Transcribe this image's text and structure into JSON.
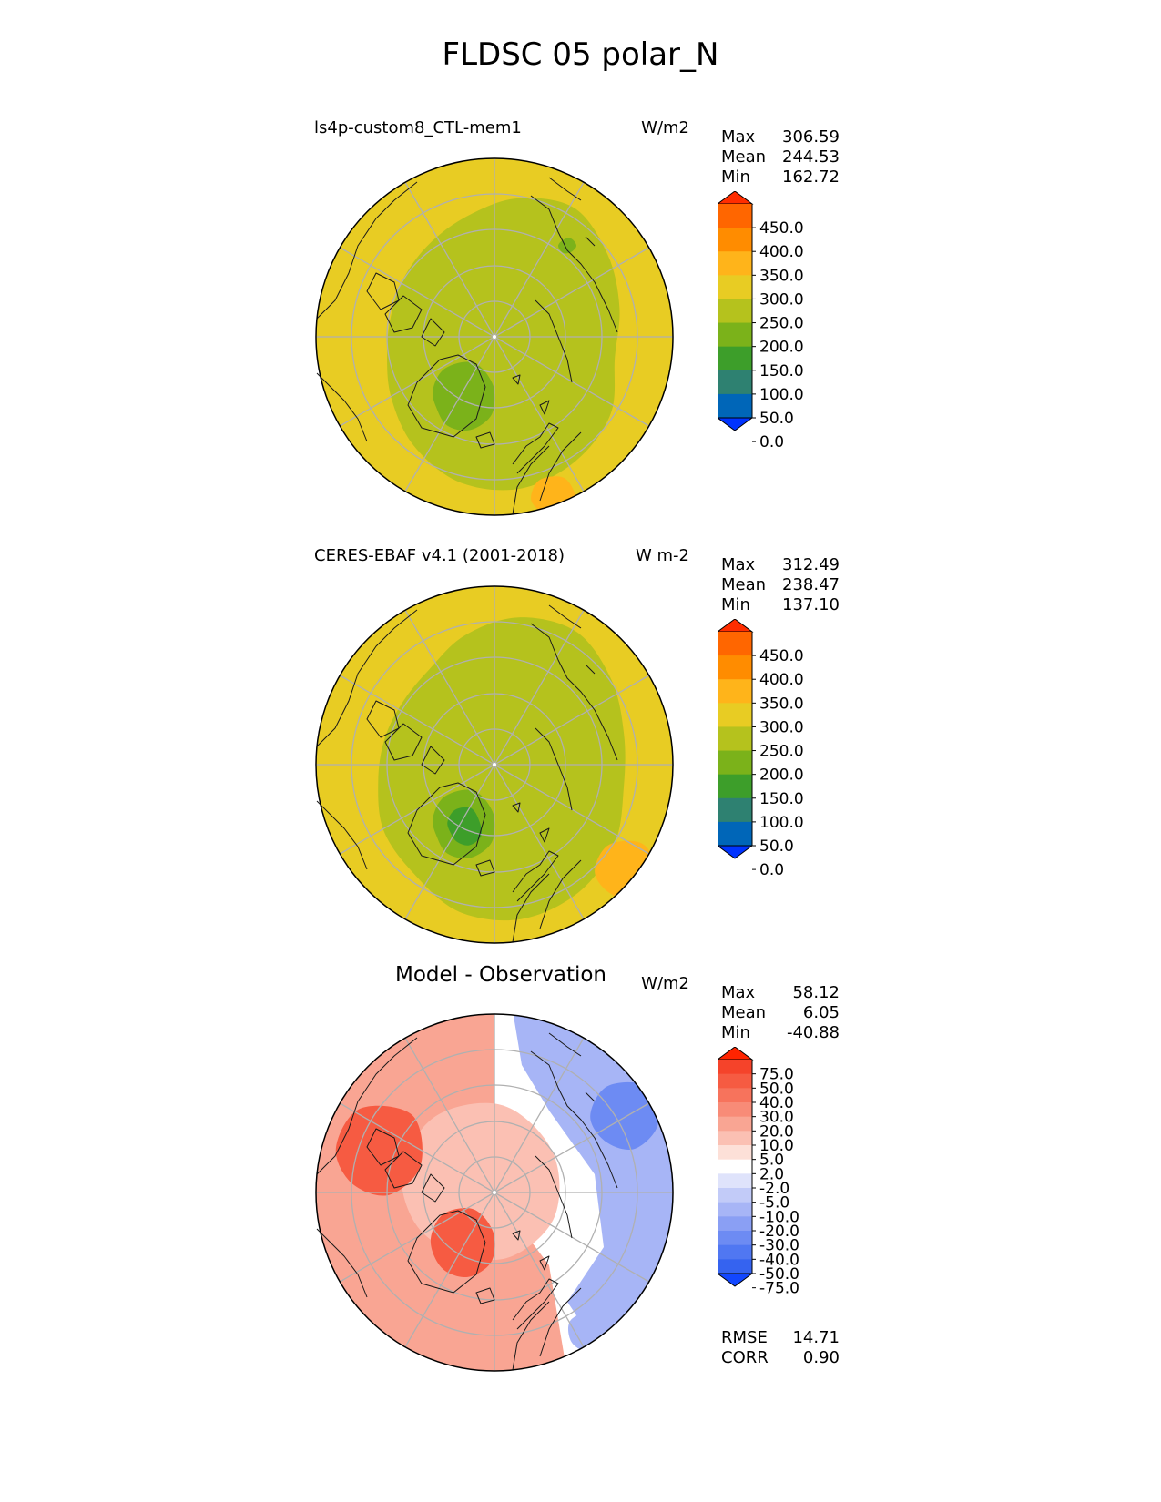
{
  "title": "FLDSC 05 polar_N",
  "panels": [
    {
      "left_title": "ls4p-custom8_CTL-mem1",
      "units": "W/m2",
      "stats": [
        {
          "label": "Max",
          "value": "306.59"
        },
        {
          "label": "Mean",
          "value": "244.53"
        },
        {
          "label": "Min",
          "value": "162.72"
        }
      ],
      "colorbar": {
        "labels": [
          "450.0",
          "400.0",
          "350.0",
          "300.0",
          "250.0",
          "200.0",
          "150.0",
          "100.0",
          "50.0",
          "0.0"
        ],
        "colors": [
          "#ff2d00",
          "#ff6600",
          "#ff8c00",
          "#ffb41a",
          "#e8cc23",
          "#b5c21d",
          "#7bb21a",
          "#3d9e2a",
          "#2e8171",
          "#0066b8",
          "#0033ff"
        ]
      }
    },
    {
      "left_title": "CERES-EBAF v4.1 (2001-2018)",
      "units": "W m-2",
      "stats": [
        {
          "label": "Max",
          "value": "312.49"
        },
        {
          "label": "Mean",
          "value": "238.47"
        },
        {
          "label": "Min",
          "value": "137.10"
        }
      ],
      "colorbar": {
        "labels": [
          "450.0",
          "400.0",
          "350.0",
          "300.0",
          "250.0",
          "200.0",
          "150.0",
          "100.0",
          "50.0",
          "0.0"
        ],
        "colors": [
          "#ff2d00",
          "#ff6600",
          "#ff8c00",
          "#ffb41a",
          "#e8cc23",
          "#b5c21d",
          "#7bb21a",
          "#3d9e2a",
          "#2e8171",
          "#0066b8",
          "#0033ff"
        ]
      }
    },
    {
      "center_title": "Model - Observation",
      "units": "W/m2",
      "stats": [
        {
          "label": "Max",
          "value": "58.12"
        },
        {
          "label": "Mean",
          "value": "6.05"
        },
        {
          "label": "Min",
          "value": "-40.88"
        }
      ],
      "colorbar": {
        "labels": [
          "75.0",
          "50.0",
          "40.0",
          "30.0",
          "20.0",
          "10.0",
          "5.0",
          "2.0",
          "-2.0",
          "-5.0",
          "-10.0",
          "-20.0",
          "-30.0",
          "-40.0",
          "-50.0",
          "-75.0"
        ],
        "colors": [
          "#ff2400",
          "#f5432a",
          "#f65b42",
          "#f7735c",
          "#f88b77",
          "#f9a593",
          "#fbc0b3",
          "#fde0d8",
          "#ffffff",
          "#dfe3fb",
          "#c2cbf8",
          "#a7b5f6",
          "#8a9ff4",
          "#6d8bf3",
          "#5077f2",
          "#3563f0",
          "#1247ff"
        ]
      },
      "metrics": [
        {
          "label": "RMSE",
          "value": "14.71"
        },
        {
          "label": "CORR",
          "value": "0.90"
        }
      ]
    }
  ],
  "map_colors": {
    "outer": "#e8cc23",
    "mid": "#b5c21d",
    "low": "#7bb21a",
    "lowest": "#3d9e2a",
    "diff_pos": "#f9a593",
    "diff_strong": "#f65b42",
    "diff_light": "#fbc0b3",
    "diff_neg": "#a7b5f6",
    "diff_strong_neg": "#6d8bf3",
    "grid": "#b0b0b0"
  }
}
